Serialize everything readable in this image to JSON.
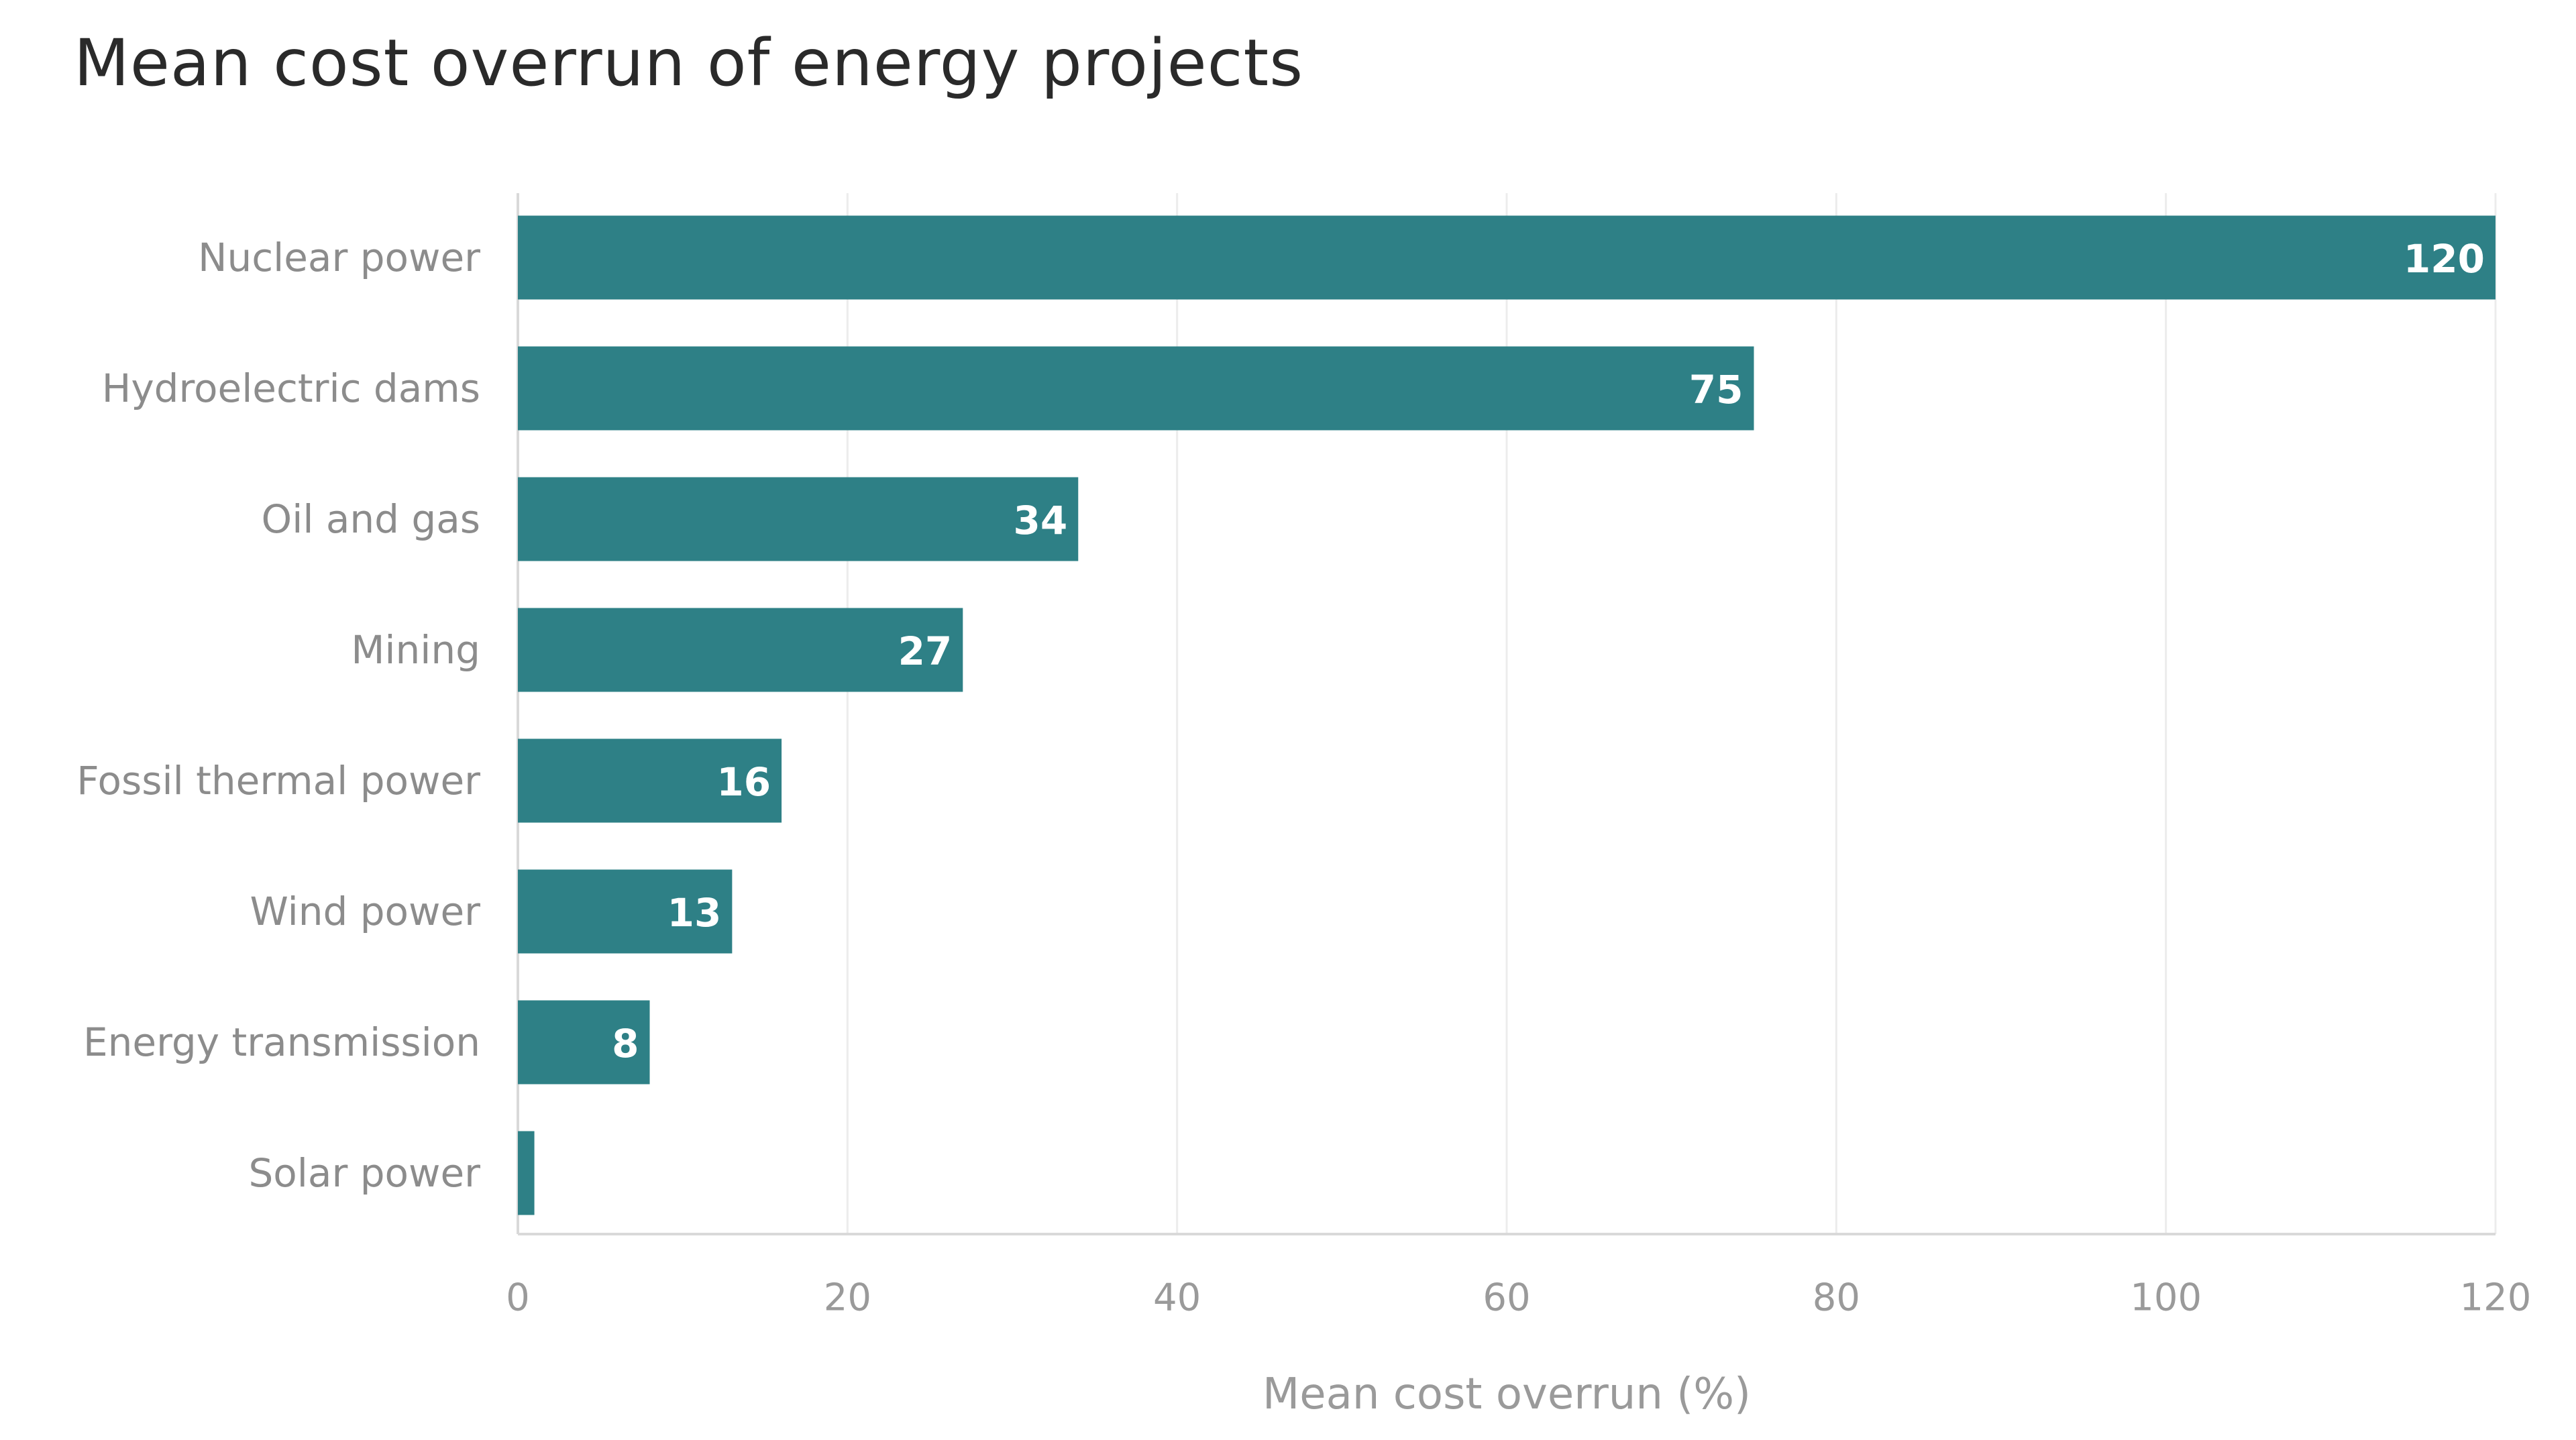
{
  "chart_data": {
    "type": "bar",
    "orientation": "horizontal",
    "title": "Mean cost overrun of energy projects",
    "xlabel": "Mean cost overrun (%)",
    "ylabel": "",
    "categories": [
      "Nuclear power",
      "Hydroelectric dams",
      "Oil and gas",
      "Mining",
      "Fossil thermal power",
      "Wind power",
      "Energy transmission",
      "Solar power"
    ],
    "values": [
      120,
      75,
      34,
      27,
      16,
      13,
      8,
      1
    ],
    "data_labels": [
      "120",
      "75",
      "34",
      "27",
      "16",
      "13",
      "8",
      ""
    ],
    "xlim": [
      0,
      120
    ],
    "xticks": [
      0,
      20,
      40,
      60,
      80,
      100,
      120
    ],
    "grid": "vertical",
    "legend": "none",
    "colors": {
      "bar": "#2e8086",
      "grid": "#ececec",
      "axis": "#d9d9d9"
    }
  }
}
